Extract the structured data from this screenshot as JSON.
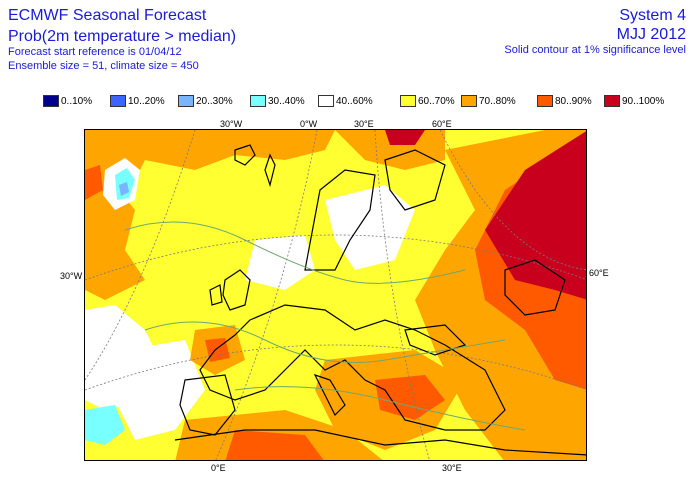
{
  "header": {
    "title": "ECMWF Seasonal Forecast",
    "subtitle": "Prob(2m temperature > median)",
    "start_reference": "Forecast start reference is 01/04/12",
    "ensemble": "Ensemble size = 51, climate size = 450",
    "system": "System 4",
    "period": "MJJ 2012",
    "contour_note": "Solid contour at 1% significance level"
  },
  "legend": [
    {
      "label": "0..10%",
      "color": "#00008c"
    },
    {
      "label": "10..20%",
      "color": "#3c64ff"
    },
    {
      "label": "20..30%",
      "color": "#78b4ff"
    },
    {
      "label": "30..40%",
      "color": "#78ffff"
    },
    {
      "label": "40..60%",
      "color": "#ffffff"
    },
    {
      "label": "60..70%",
      "color": "#ffff32"
    },
    {
      "label": "70..80%",
      "color": "#ffa500"
    },
    {
      "label": "80..90%",
      "color": "#ff5a00"
    },
    {
      "label": "90..100%",
      "color": "#c8001e"
    }
  ],
  "map": {
    "top_labels": [
      "30°W",
      "0°W",
      "30°E",
      "60°E"
    ],
    "left_label": "30°W",
    "right_label": "60°E",
    "bottom_labels": [
      "0°E",
      "30°E"
    ],
    "colors": {
      "land_outline": "#000000",
      "graticule": "#7a7a7a",
      "significance_contour": "#6fa86f"
    }
  }
}
